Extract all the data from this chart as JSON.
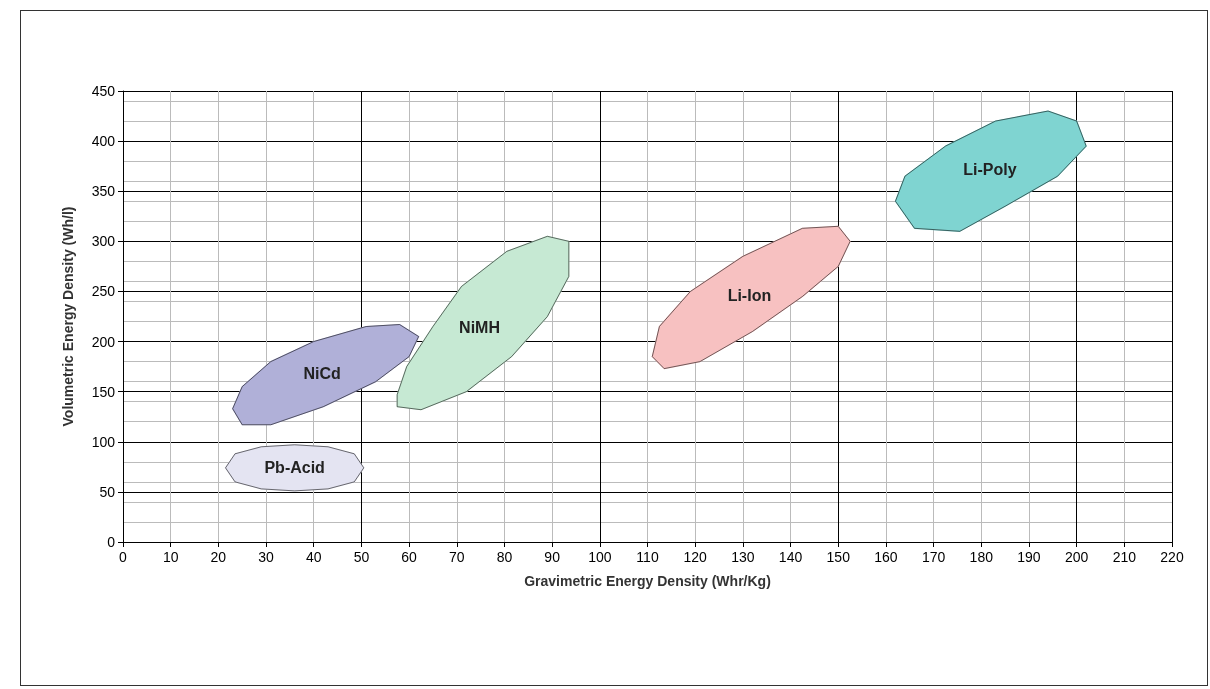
{
  "chart_data": {
    "type": "area",
    "xlabel": "Gravimetric Energy Density (Whr/Kg)",
    "ylabel": "Volumetric Energy Density (Wh/l)",
    "xlim": [
      0,
      220
    ],
    "xticks": [
      0,
      10,
      20,
      30,
      40,
      50,
      60,
      70,
      80,
      90,
      100,
      110,
      120,
      130,
      140,
      150,
      160,
      170,
      180,
      190,
      200,
      210,
      220
    ],
    "ylim": [
      0,
      450
    ],
    "yticks": [
      0,
      50,
      100,
      150,
      200,
      250,
      300,
      350,
      400,
      450
    ],
    "grid": true,
    "marker": "none",
    "legend": false,
    "series": [
      {
        "name": "Pb-Acid",
        "color": "#e4e4f2",
        "x": [
          21.5,
          23.5,
          29,
          36,
          43,
          48.5,
          50.5,
          48.5,
          43,
          36,
          29,
          23.5
        ],
        "values": [
          74,
          88,
          95,
          97,
          95,
          88,
          74,
          60,
          53,
          51,
          53,
          60
        ]
      },
      {
        "name": "NiCd",
        "color": "#b0b0d8",
        "x": [
          23,
          25,
          31,
          40,
          51,
          58,
          62,
          60,
          53,
          42,
          31,
          25
        ],
        "values": [
          133,
          155,
          180,
          200,
          215,
          217,
          205,
          185,
          160,
          135,
          117,
          117
        ]
      },
      {
        "name": "NiMH",
        "color": "#c6e9d3",
        "x": [
          57.5,
          59.5,
          65,
          71,
          80.5,
          89,
          93.5,
          93.5,
          89,
          81.5,
          72,
          62.5,
          57.5
        ],
        "values": [
          147,
          175,
          215,
          255,
          290,
          305,
          300,
          265,
          225,
          185,
          150,
          132,
          135
        ]
      },
      {
        "name": "Li-Ion",
        "color": "#f7c1c1",
        "x": [
          111,
          112.5,
          119,
          130,
          142.5,
          150,
          152.5,
          150,
          142.5,
          132,
          121,
          113.5
        ],
        "values": [
          185,
          215,
          250,
          285,
          313,
          315,
          300,
          275,
          245,
          210,
          180,
          173
        ]
      },
      {
        "name": "Li-Poly",
        "color": "#7fd4d1",
        "x": [
          162,
          164,
          172.5,
          183,
          194,
          200,
          202,
          196,
          185,
          175.5,
          166
        ],
        "values": [
          340,
          365,
          395,
          420,
          430,
          420,
          395,
          365,
          335,
          310,
          313
        ]
      }
    ]
  }
}
